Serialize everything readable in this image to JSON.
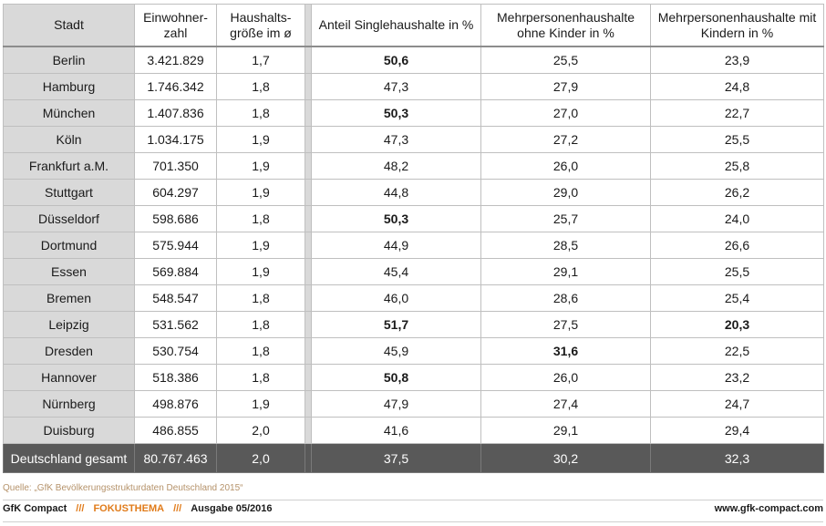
{
  "table": {
    "headers": {
      "city": "Stadt",
      "population": "Einwohner-zahl",
      "household_size": "Haushalts-größe im ø",
      "single": "Anteil Singlehaushalte in %",
      "multi_no_kids": "Mehrpersonenhaushalte ohne Kinder in %",
      "multi_kids": "Mehrpersonenhaushalte mit Kindern in %"
    },
    "rows": [
      {
        "city": "Berlin",
        "population": "3.421.829",
        "household_size": "1,7",
        "single": "50,6",
        "multi_no_kids": "25,5",
        "multi_kids": "23,9"
      },
      {
        "city": "Hamburg",
        "population": "1.746.342",
        "household_size": "1,8",
        "single": "47,3",
        "multi_no_kids": "27,9",
        "multi_kids": "24,8"
      },
      {
        "city": "München",
        "population": "1.407.836",
        "household_size": "1,8",
        "single": "50,3",
        "multi_no_kids": "27,0",
        "multi_kids": "22,7"
      },
      {
        "city": "Köln",
        "population": "1.034.175",
        "household_size": "1,9",
        "single": "47,3",
        "multi_no_kids": "27,2",
        "multi_kids": "25,5"
      },
      {
        "city": "Frankfurt  a.M.",
        "population": "701.350",
        "household_size": "1,9",
        "single": "48,2",
        "multi_no_kids": "26,0",
        "multi_kids": "25,8"
      },
      {
        "city": "Stuttgart",
        "population": "604.297",
        "household_size": "1,9",
        "single": "44,8",
        "multi_no_kids": "29,0",
        "multi_kids": "26,2"
      },
      {
        "city": "Düsseldorf",
        "population": "598.686",
        "household_size": "1,8",
        "single": "50,3",
        "multi_no_kids": "25,7",
        "multi_kids": "24,0"
      },
      {
        "city": "Dortmund",
        "population": "575.944",
        "household_size": "1,9",
        "single": "44,9",
        "multi_no_kids": "28,5",
        "multi_kids": "26,6"
      },
      {
        "city": "Essen",
        "population": "569.884",
        "household_size": "1,9",
        "single": "45,4",
        "multi_no_kids": "29,1",
        "multi_kids": "25,5"
      },
      {
        "city": "Bremen",
        "population": "548.547",
        "household_size": "1,8",
        "single": "46,0",
        "multi_no_kids": "28,6",
        "multi_kids": "25,4"
      },
      {
        "city": "Leipzig",
        "population": "531.562",
        "household_size": "1,8",
        "single": "51,7",
        "multi_no_kids": "27,5",
        "multi_kids": "20,3"
      },
      {
        "city": "Dresden",
        "population": "530.754",
        "household_size": "1,8",
        "single": "45,9",
        "multi_no_kids": "31,6",
        "multi_kids": "22,5"
      },
      {
        "city": "Hannover",
        "population": "518.386",
        "household_size": "1,8",
        "single": "50,8",
        "multi_no_kids": "26,0",
        "multi_kids": "23,2"
      },
      {
        "city": "Nürnberg",
        "population": "498.876",
        "household_size": "1,9",
        "single": "47,9",
        "multi_no_kids": "27,4",
        "multi_kids": "24,7"
      },
      {
        "city": "Duisburg",
        "population": "486.855",
        "household_size": "2,0",
        "single": "41,6",
        "multi_no_kids": "29,1",
        "multi_kids": "29,4"
      }
    ],
    "total": {
      "city": "Deutschland gesamt",
      "population": "80.767.463",
      "household_size": "2,0",
      "single": "37,5",
      "multi_no_kids": "30,2",
      "multi_kids": "32,3"
    }
  },
  "source": "Quelle: „GfK Bevölkerungsstrukturdaten Deutschland 2015“",
  "footer": {
    "brand": "GfK Compact",
    "separator": "///",
    "topic": "FOKUSTHEMA",
    "issue": "Ausgabe 05/2016",
    "url": "www.gfk-compact.com"
  },
  "colors": {
    "header_gray": "#d9d9d9",
    "total_row": "#595959",
    "accent_orange": "#e07b1a",
    "source_text": "#b5926a"
  }
}
